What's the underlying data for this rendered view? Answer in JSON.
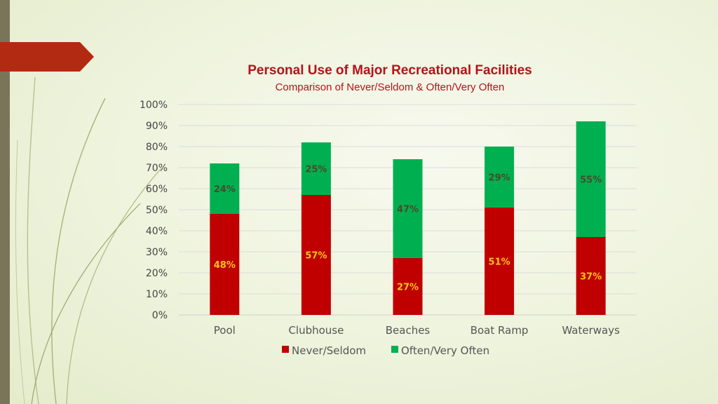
{
  "colors": {
    "never": "#c00000",
    "often": "#00b050",
    "accent": "#b3131a"
  },
  "chart_data": {
    "type": "bar",
    "stacked": true,
    "title": "Personal Use of Major Recreational Facilities",
    "subtitle": "Comparison of Never/Seldom & Often/Very Often",
    "categories": [
      "Pool",
      "Clubhouse",
      "Beaches",
      "Boat Ramp",
      "Waterways"
    ],
    "series": [
      {
        "name": "Never/Seldom",
        "values": [
          48,
          57,
          27,
          51,
          37
        ],
        "labels": [
          "48%",
          "57%",
          "27%",
          "51%",
          "37%"
        ]
      },
      {
        "name": "Often/Very Often",
        "values": [
          24,
          25,
          47,
          29,
          55
        ],
        "labels": [
          "24%",
          "25%",
          "47%",
          "29%",
          "55%"
        ]
      }
    ],
    "ylim": [
      0,
      100
    ],
    "yticks": [
      "0%",
      "10%",
      "20%",
      "30%",
      "40%",
      "50%",
      "60%",
      "70%",
      "80%",
      "90%",
      "100%"
    ],
    "grid": true,
    "legend_position": "bottom"
  }
}
